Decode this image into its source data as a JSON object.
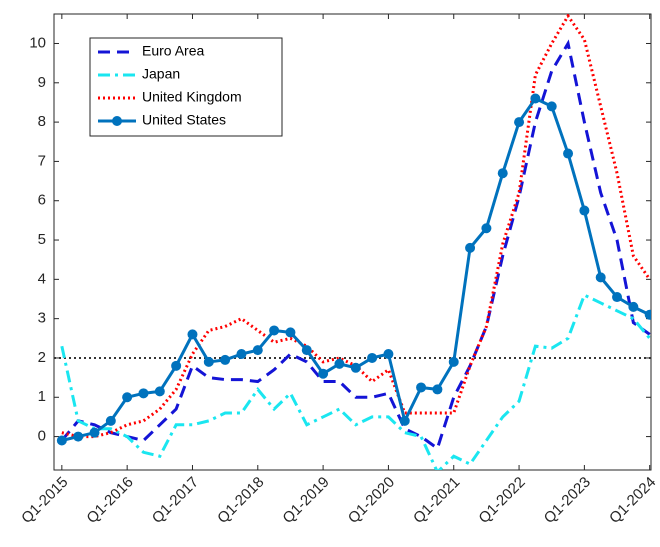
{
  "chart_data": {
    "type": "line",
    "x": [
      2015,
      2015.25,
      2015.5,
      2015.75,
      2016,
      2016.25,
      2016.5,
      2016.75,
      2017,
      2017.25,
      2017.5,
      2017.75,
      2018,
      2018.25,
      2018.5,
      2018.75,
      2019,
      2019.25,
      2019.5,
      2019.75,
      2020,
      2020.25,
      2020.5,
      2020.75,
      2021,
      2021.25,
      2021.5,
      2021.75,
      2022,
      2022.25,
      2022.5,
      2022.75,
      2023,
      2023.25,
      2023.5,
      2023.75,
      2024
    ],
    "series": [
      {
        "name": "Euro Area",
        "color": "#1414d6",
        "dash": "12 7",
        "values": [
          -0.1,
          0.4,
          0.3,
          0.1,
          0.0,
          -0.1,
          0.3,
          0.7,
          1.8,
          1.5,
          1.45,
          1.45,
          1.4,
          1.7,
          2.1,
          1.9,
          1.4,
          1.4,
          1.0,
          1.0,
          1.1,
          0.2,
          0.0,
          -0.3,
          1.0,
          1.8,
          2.8,
          4.6,
          6.1,
          8.0,
          9.3,
          10.0,
          8.0,
          6.2,
          5.0,
          2.9,
          2.6
        ]
      },
      {
        "name": "Japan",
        "color": "#1ae6f0",
        "dash": "12 5 3 5",
        "values": [
          2.3,
          0.4,
          0.2,
          0.2,
          0.0,
          -0.4,
          -0.5,
          0.3,
          0.3,
          0.4,
          0.6,
          0.6,
          1.2,
          0.7,
          1.1,
          0.3,
          0.5,
          0.7,
          0.3,
          0.5,
          0.5,
          0.1,
          0.0,
          -0.9,
          -0.5,
          -0.7,
          -0.1,
          0.5,
          0.9,
          2.3,
          2.25,
          2.5,
          3.6,
          3.4,
          3.2,
          3.0,
          2.5
        ]
      },
      {
        "name": "United Kingdom",
        "color": "#ff0000",
        "dash": "2 3",
        "values": [
          0.1,
          0.0,
          0.0,
          0.1,
          0.3,
          0.4,
          0.7,
          1.2,
          2.1,
          2.7,
          2.8,
          3.0,
          2.7,
          2.4,
          2.5,
          2.3,
          1.9,
          2.0,
          1.8,
          1.4,
          1.7,
          0.6,
          0.6,
          0.6,
          0.6,
          1.8,
          2.8,
          4.9,
          6.2,
          9.2,
          10.0,
          10.7,
          10.1,
          8.4,
          6.7,
          4.6,
          4.0
        ]
      },
      {
        "name": "United States",
        "color": "#0072bd",
        "dash": "none",
        "markers": true,
        "values": [
          -0.1,
          0.0,
          0.1,
          0.4,
          1.0,
          1.1,
          1.15,
          1.8,
          2.6,
          1.9,
          1.95,
          2.1,
          2.2,
          2.7,
          2.65,
          2.2,
          1.6,
          1.85,
          1.75,
          2.0,
          2.1,
          0.4,
          1.25,
          1.2,
          1.9,
          4.8,
          5.3,
          6.7,
          8.0,
          8.6,
          8.4,
          7.2,
          5.75,
          4.05,
          3.55,
          3.3,
          3.1
        ]
      }
    ],
    "xlim": [
      2014.88,
      2024.02
    ],
    "xticks": [
      {
        "value": 2015,
        "label": "Q1-2015"
      },
      {
        "value": 2016,
        "label": "Q1-2016"
      },
      {
        "value": 2017,
        "label": "Q1-2017"
      },
      {
        "value": 2018,
        "label": "Q1-2018"
      },
      {
        "value": 2019,
        "label": "Q1-2019"
      },
      {
        "value": 2020,
        "label": "Q1-2020"
      },
      {
        "value": 2021,
        "label": "Q1-2021"
      },
      {
        "value": 2022,
        "label": "Q1-2022"
      },
      {
        "value": 2023,
        "label": "Q1-2023"
      },
      {
        "value": 2024,
        "label": "Q1-2024"
      }
    ],
    "ylim": [
      -0.85,
      10.75
    ],
    "yticks": [
      0,
      1,
      2,
      3,
      4,
      5,
      6,
      7,
      8,
      9,
      10
    ],
    "hline": 2,
    "legend": "upper-left"
  }
}
